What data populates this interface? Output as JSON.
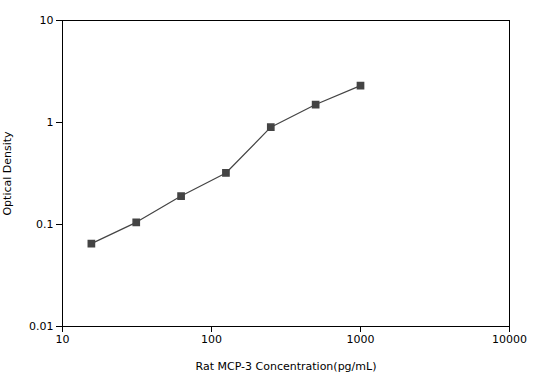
{
  "chart_data": {
    "type": "line",
    "x": [
      15.625,
      31.25,
      62.5,
      125,
      250,
      500,
      1000
    ],
    "values": [
      0.065,
      0.105,
      0.19,
      0.32,
      0.9,
      1.5,
      2.3
    ],
    "xlabel": "Rat MCP-3 Concentration(pg/mL)",
    "ylabel": "Optical Density",
    "xlim": [
      10,
      10000
    ],
    "ylim": [
      0.01,
      10
    ],
    "xticks": [
      10,
      100,
      1000,
      10000
    ],
    "yticks": [
      0.01,
      0.1,
      1,
      10
    ],
    "log": true,
    "color": "#444444",
    "marker": "square",
    "grid": false
  }
}
